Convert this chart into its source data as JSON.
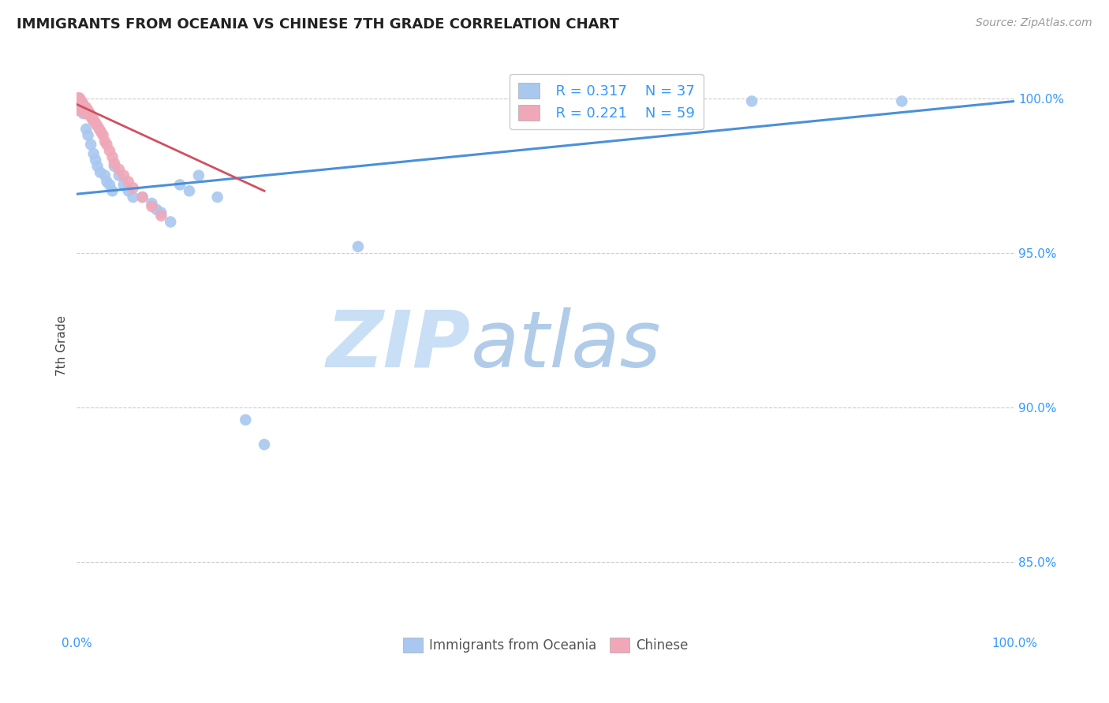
{
  "title": "IMMIGRANTS FROM OCEANIA VS CHINESE 7TH GRADE CORRELATION CHART",
  "source": "Source: ZipAtlas.com",
  "ylabel": "7th Grade",
  "y_tick_vals": [
    0.85,
    0.9,
    0.95,
    1.0
  ],
  "y_tick_labels": [
    "85.0%",
    "90.0%",
    "95.0%",
    "100.0%"
  ],
  "xlim": [
    0.0,
    1.0
  ],
  "ylim": [
    0.828,
    1.012
  ],
  "legend_r1": "R = 0.317",
  "legend_n1": "N = 37",
  "legend_r2": "R = 0.221",
  "legend_n2": "N = 59",
  "color_blue": "#a8c8f0",
  "color_pink": "#f0a8b8",
  "trendline_blue": "#4a90d9",
  "trendline_pink": "#d05060",
  "watermark_zip": "ZIP",
  "watermark_atlas": "atlas",
  "watermark_color": "#ddeeff",
  "blue_points_x": [
    0.002,
    0.003,
    0.004,
    0.005,
    0.006,
    0.007,
    0.01,
    0.012,
    0.015,
    0.018,
    0.02,
    0.022,
    0.025,
    0.03,
    0.032,
    0.035,
    0.038,
    0.04,
    0.045,
    0.05,
    0.055,
    0.06,
    0.07,
    0.08,
    0.085,
    0.09,
    0.1,
    0.11,
    0.12,
    0.13,
    0.15,
    0.18,
    0.2,
    0.3,
    0.65,
    0.72,
    0.88
  ],
  "blue_points_y": [
    0.998,
    0.998,
    0.998,
    0.997,
    0.996,
    0.995,
    0.99,
    0.988,
    0.985,
    0.982,
    0.98,
    0.978,
    0.976,
    0.975,
    0.973,
    0.972,
    0.97,
    0.978,
    0.975,
    0.972,
    0.97,
    0.968,
    0.968,
    0.966,
    0.964,
    0.963,
    0.96,
    0.972,
    0.97,
    0.975,
    0.968,
    0.896,
    0.888,
    0.952,
    0.999,
    0.999,
    0.999
  ],
  "pink_points_x": [
    0.001,
    0.001,
    0.001,
    0.002,
    0.002,
    0.002,
    0.002,
    0.002,
    0.003,
    0.003,
    0.003,
    0.003,
    0.003,
    0.004,
    0.004,
    0.004,
    0.005,
    0.005,
    0.005,
    0.005,
    0.006,
    0.006,
    0.006,
    0.007,
    0.007,
    0.007,
    0.008,
    0.008,
    0.009,
    0.009,
    0.01,
    0.01,
    0.01,
    0.011,
    0.012,
    0.012,
    0.013,
    0.014,
    0.015,
    0.016,
    0.017,
    0.018,
    0.02,
    0.022,
    0.024,
    0.026,
    0.028,
    0.03,
    0.032,
    0.035,
    0.038,
    0.04,
    0.045,
    0.05,
    0.055,
    0.06,
    0.07,
    0.08,
    0.09
  ],
  "pink_points_y": [
    1.0,
    0.999,
    0.998,
    1.0,
    0.999,
    0.998,
    0.997,
    0.996,
    1.0,
    0.999,
    0.998,
    0.997,
    0.996,
    0.999,
    0.998,
    0.997,
    0.999,
    0.998,
    0.997,
    0.996,
    0.998,
    0.997,
    0.996,
    0.998,
    0.997,
    0.996,
    0.997,
    0.996,
    0.997,
    0.996,
    0.997,
    0.996,
    0.995,
    0.996,
    0.996,
    0.995,
    0.995,
    0.995,
    0.994,
    0.994,
    0.993,
    0.993,
    0.992,
    0.991,
    0.99,
    0.989,
    0.988,
    0.986,
    0.985,
    0.983,
    0.981,
    0.979,
    0.977,
    0.975,
    0.973,
    0.971,
    0.968,
    0.965,
    0.962
  ],
  "blue_trend_x": [
    0.0,
    1.0
  ],
  "blue_trend_y": [
    0.969,
    0.999
  ],
  "pink_trend_x": [
    0.0,
    0.2
  ],
  "pink_trend_y": [
    0.998,
    0.97
  ]
}
